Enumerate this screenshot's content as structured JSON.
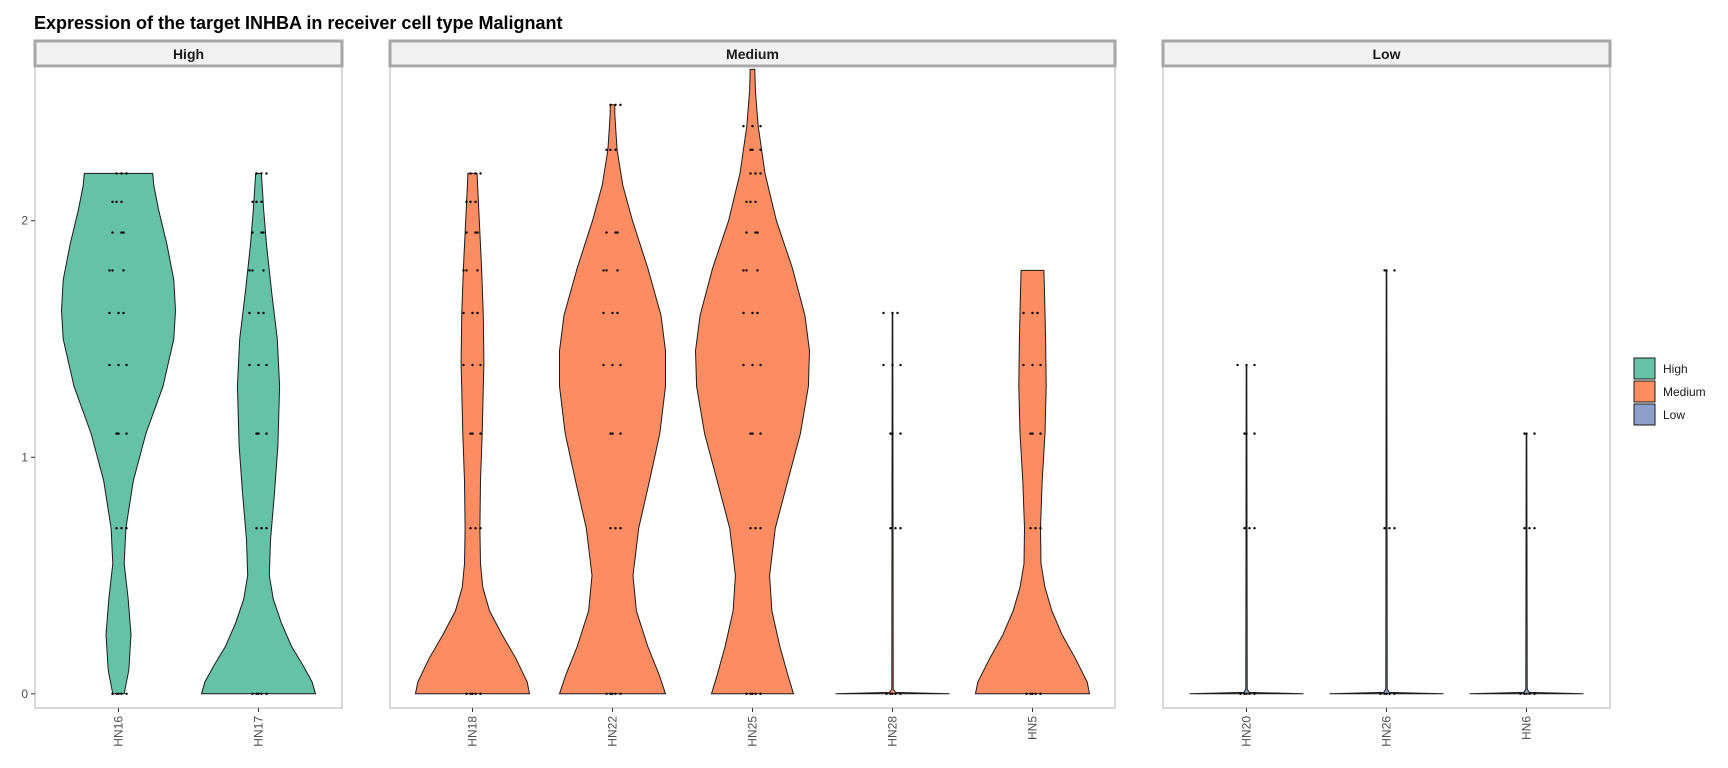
{
  "chart_data": {
    "type": "violin",
    "title": "Expression of the target INHBA in receiver cell type Malignant",
    "xlabel": "",
    "ylabel": "",
    "ylim": [
      -0.06,
      2.65
    ],
    "yticks": [
      0,
      1,
      2
    ],
    "grid": false,
    "legend_position": "right",
    "colors": {
      "High": "#66c2a5",
      "Medium": "#fc8d62",
      "Low": "#8da0cb"
    },
    "legend": [
      {
        "label": "High",
        "color": "#66c2a5"
      },
      {
        "label": "Medium",
        "color": "#fc8d62"
      },
      {
        "label": "Low",
        "color": "#8da0cb"
      }
    ],
    "panels": [
      {
        "label": "High",
        "group": "High",
        "samples": [
          {
            "name": "HN16",
            "max": 2.2,
            "dots": [
              0,
              0.7,
              1.1,
              1.39,
              1.61,
              1.79,
              1.95,
              2.08,
              2.2
            ],
            "density": [
              [
                0,
                0.1
              ],
              [
                0.1,
                0.18
              ],
              [
                0.25,
                0.22
              ],
              [
                0.4,
                0.17
              ],
              [
                0.55,
                0.1
              ],
              [
                0.7,
                0.13
              ],
              [
                0.9,
                0.26
              ],
              [
                1.1,
                0.48
              ],
              [
                1.3,
                0.78
              ],
              [
                1.5,
                0.97
              ],
              [
                1.62,
                1.0
              ],
              [
                1.75,
                0.97
              ],
              [
                1.9,
                0.85
              ],
              [
                2.05,
                0.7
              ],
              [
                2.15,
                0.62
              ],
              [
                2.2,
                0.6
              ]
            ]
          },
          {
            "name": "HN17",
            "max": 2.2,
            "dots": [
              0,
              0.7,
              1.1,
              1.39,
              1.61,
              1.79,
              1.95,
              2.08,
              2.2
            ],
            "density": [
              [
                0,
                1.0
              ],
              [
                0.05,
                0.94
              ],
              [
                0.12,
                0.78
              ],
              [
                0.2,
                0.58
              ],
              [
                0.3,
                0.4
              ],
              [
                0.4,
                0.26
              ],
              [
                0.5,
                0.19
              ],
              [
                0.65,
                0.21
              ],
              [
                0.85,
                0.28
              ],
              [
                1.05,
                0.34
              ],
              [
                1.3,
                0.37
              ],
              [
                1.5,
                0.33
              ],
              [
                1.7,
                0.23
              ],
              [
                1.9,
                0.14
              ],
              [
                2.05,
                0.09
              ],
              [
                2.2,
                0.05
              ]
            ]
          }
        ]
      },
      {
        "label": "Medium",
        "group": "Medium",
        "samples": [
          {
            "name": "HN18",
            "max": 2.2,
            "dots": [
              0,
              0.7,
              1.1,
              1.39,
              1.61,
              1.79,
              1.95,
              2.08,
              2.2
            ],
            "density": [
              [
                0,
                1.0
              ],
              [
                0.05,
                0.96
              ],
              [
                0.15,
                0.76
              ],
              [
                0.25,
                0.52
              ],
              [
                0.35,
                0.3
              ],
              [
                0.45,
                0.18
              ],
              [
                0.55,
                0.14
              ],
              [
                0.7,
                0.13
              ],
              [
                0.9,
                0.14
              ],
              [
                1.1,
                0.17
              ],
              [
                1.4,
                0.2
              ],
              [
                1.6,
                0.19
              ],
              [
                1.8,
                0.16
              ],
              [
                2.0,
                0.12
              ],
              [
                2.15,
                0.09
              ],
              [
                2.2,
                0.08
              ]
            ]
          },
          {
            "name": "HN22",
            "max": 2.49,
            "dots": [
              0,
              0.7,
              1.1,
              1.39,
              1.61,
              1.79,
              1.95,
              2.3,
              2.49
            ],
            "density": [
              [
                0,
                0.93
              ],
              [
                0.08,
                0.82
              ],
              [
                0.2,
                0.62
              ],
              [
                0.35,
                0.42
              ],
              [
                0.5,
                0.36
              ],
              [
                0.7,
                0.46
              ],
              [
                0.9,
                0.65
              ],
              [
                1.1,
                0.83
              ],
              [
                1.3,
                0.93
              ],
              [
                1.45,
                0.93
              ],
              [
                1.6,
                0.85
              ],
              [
                1.8,
                0.62
              ],
              [
                2.0,
                0.35
              ],
              [
                2.15,
                0.18
              ],
              [
                2.3,
                0.08
              ],
              [
                2.45,
                0.04
              ],
              [
                2.49,
                0.04
              ]
            ]
          },
          {
            "name": "HN25",
            "max": 2.64,
            "dots": [
              0,
              0.7,
              1.1,
              1.39,
              1.61,
              1.79,
              1.95,
              2.08,
              2.2,
              2.3,
              2.4
            ],
            "density": [
              [
                0,
                0.72
              ],
              [
                0.08,
                0.62
              ],
              [
                0.2,
                0.48
              ],
              [
                0.35,
                0.34
              ],
              [
                0.5,
                0.3
              ],
              [
                0.7,
                0.4
              ],
              [
                0.9,
                0.62
              ],
              [
                1.1,
                0.84
              ],
              [
                1.3,
                0.98
              ],
              [
                1.45,
                1.0
              ],
              [
                1.6,
                0.92
              ],
              [
                1.8,
                0.7
              ],
              [
                2.0,
                0.42
              ],
              [
                2.2,
                0.22
              ],
              [
                2.4,
                0.1
              ],
              [
                2.55,
                0.05
              ],
              [
                2.64,
                0.04
              ]
            ]
          },
          {
            "name": "HN28",
            "max": 1.61,
            "dots": [
              0,
              0.7,
              1.1,
              1.39,
              1.61
            ],
            "density": [
              [
                0,
                1.0
              ],
              [
                0.006,
                0.05
              ],
              [
                0.02,
                0.012
              ],
              [
                1.61,
                0.006
              ]
            ]
          },
          {
            "name": "HN5",
            "max": 1.79,
            "dots": [
              0,
              0.7,
              1.1,
              1.39,
              1.61
            ],
            "density": [
              [
                0,
                1.0
              ],
              [
                0.05,
                0.96
              ],
              [
                0.15,
                0.75
              ],
              [
                0.25,
                0.52
              ],
              [
                0.35,
                0.34
              ],
              [
                0.45,
                0.22
              ],
              [
                0.55,
                0.15
              ],
              [
                0.7,
                0.14
              ],
              [
                0.9,
                0.17
              ],
              [
                1.1,
                0.22
              ],
              [
                1.3,
                0.24
              ],
              [
                1.5,
                0.23
              ],
              [
                1.7,
                0.21
              ],
              [
                1.79,
                0.2
              ]
            ]
          }
        ]
      },
      {
        "label": "Low",
        "group": "Low",
        "samples": [
          {
            "name": "HN20",
            "max": 1.39,
            "dots": [
              0,
              0.7,
              1.1,
              1.39
            ],
            "density": [
              [
                0,
                1.0
              ],
              [
                0.006,
                0.05
              ],
              [
                0.02,
                0.012
              ],
              [
                1.39,
                0.006
              ]
            ]
          },
          {
            "name": "HN26",
            "max": 1.79,
            "dots": [
              0,
              0.7,
              1.79
            ],
            "density": [
              [
                0,
                1.0
              ],
              [
                0.006,
                0.05
              ],
              [
                0.02,
                0.012
              ],
              [
                1.79,
                0.006
              ]
            ]
          },
          {
            "name": "HN6",
            "max": 1.1,
            "dots": [
              0,
              0.7,
              1.1
            ],
            "density": [
              [
                0,
                1.0
              ],
              [
                0.006,
                0.05
              ],
              [
                0.02,
                0.012
              ],
              [
                1.1,
                0.006
              ]
            ]
          }
        ]
      }
    ]
  }
}
